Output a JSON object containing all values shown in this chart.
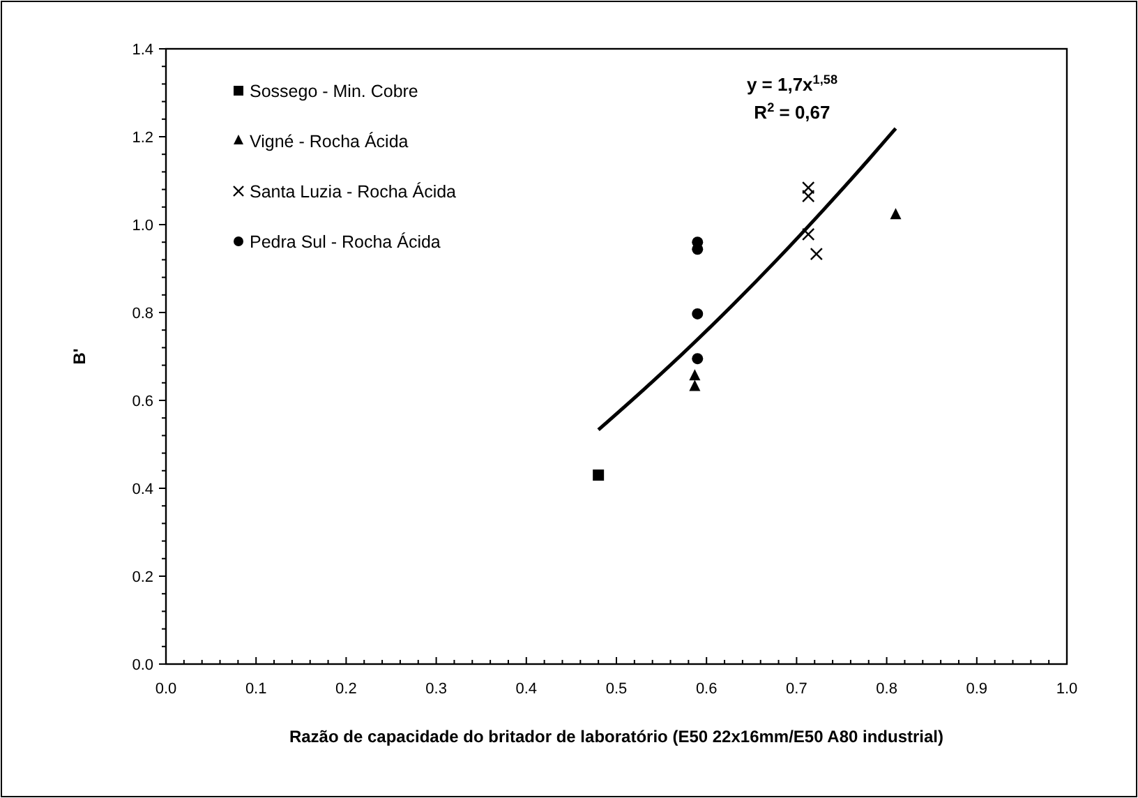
{
  "chart_data": {
    "type": "scatter",
    "xlabel": "Razão de capacidade do britador de laboratório (E50 22x16mm/E50 A80 industrial)",
    "ylabel": "B'",
    "xlim": [
      0,
      1
    ],
    "ylim": [
      0,
      1.4
    ],
    "xticks": [
      {
        "value": 0,
        "label": "0.0"
      },
      {
        "value": 0.02,
        "label": null
      },
      {
        "value": 0.04,
        "label": null
      },
      {
        "value": 0.06,
        "label": null
      },
      {
        "value": 0.08,
        "label": null
      },
      {
        "value": 0.1,
        "label": "0.1"
      },
      {
        "value": 0.12,
        "label": null
      },
      {
        "value": 0.14,
        "label": null
      },
      {
        "value": 0.16,
        "label": null
      },
      {
        "value": 0.18,
        "label": null
      },
      {
        "value": 0.2,
        "label": "0.2"
      },
      {
        "value": 0.22,
        "label": null
      },
      {
        "value": 0.24,
        "label": null
      },
      {
        "value": 0.26,
        "label": null
      },
      {
        "value": 0.28,
        "label": null
      },
      {
        "value": 0.3,
        "label": "0.3"
      },
      {
        "value": 0.32,
        "label": null
      },
      {
        "value": 0.34,
        "label": null
      },
      {
        "value": 0.36,
        "label": null
      },
      {
        "value": 0.38,
        "label": null
      },
      {
        "value": 0.4,
        "label": "0.4"
      },
      {
        "value": 0.42,
        "label": null
      },
      {
        "value": 0.44,
        "label": null
      },
      {
        "value": 0.46,
        "label": null
      },
      {
        "value": 0.48,
        "label": null
      },
      {
        "value": 0.5,
        "label": "0.5"
      },
      {
        "value": 0.52,
        "label": null
      },
      {
        "value": 0.54,
        "label": null
      },
      {
        "value": 0.56,
        "label": null
      },
      {
        "value": 0.58,
        "label": null
      },
      {
        "value": 0.6,
        "label": "0.6"
      },
      {
        "value": 0.62,
        "label": null
      },
      {
        "value": 0.64,
        "label": null
      },
      {
        "value": 0.66,
        "label": null
      },
      {
        "value": 0.68,
        "label": null
      },
      {
        "value": 0.7,
        "label": "0.7"
      },
      {
        "value": 0.72,
        "label": null
      },
      {
        "value": 0.74,
        "label": null
      },
      {
        "value": 0.76,
        "label": null
      },
      {
        "value": 0.78,
        "label": null
      },
      {
        "value": 0.8,
        "label": "0.8"
      },
      {
        "value": 0.82,
        "label": null
      },
      {
        "value": 0.84,
        "label": null
      },
      {
        "value": 0.86,
        "label": null
      },
      {
        "value": 0.88,
        "label": null
      },
      {
        "value": 0.9,
        "label": "0.9"
      },
      {
        "value": 0.92,
        "label": null
      },
      {
        "value": 0.94,
        "label": null
      },
      {
        "value": 0.96,
        "label": null
      },
      {
        "value": 0.98,
        "label": null
      },
      {
        "value": 1,
        "label": "1.0"
      }
    ],
    "yticks": [
      {
        "value": 0,
        "label": "0.0"
      },
      {
        "value": 0.04,
        "label": null
      },
      {
        "value": 0.08,
        "label": null
      },
      {
        "value": 0.12,
        "label": null
      },
      {
        "value": 0.16,
        "label": null
      },
      {
        "value": 0.2,
        "label": "0.2"
      },
      {
        "value": 0.24,
        "label": null
      },
      {
        "value": 0.28,
        "label": null
      },
      {
        "value": 0.32,
        "label": null
      },
      {
        "value": 0.36,
        "label": null
      },
      {
        "value": 0.4,
        "label": "0.4"
      },
      {
        "value": 0.44,
        "label": null
      },
      {
        "value": 0.48,
        "label": null
      },
      {
        "value": 0.52,
        "label": null
      },
      {
        "value": 0.56,
        "label": null
      },
      {
        "value": 0.6,
        "label": "0.6"
      },
      {
        "value": 0.64,
        "label": null
      },
      {
        "value": 0.68,
        "label": null
      },
      {
        "value": 0.72,
        "label": null
      },
      {
        "value": 0.76,
        "label": null
      },
      {
        "value": 0.8,
        "label": "0.8"
      },
      {
        "value": 0.84,
        "label": null
      },
      {
        "value": 0.88,
        "label": null
      },
      {
        "value": 0.92,
        "label": null
      },
      {
        "value": 0.96,
        "label": null
      },
      {
        "value": 1,
        "label": "1.0"
      },
      {
        "value": 1.04,
        "label": null
      },
      {
        "value": 1.08,
        "label": null
      },
      {
        "value": 1.12,
        "label": null
      },
      {
        "value": 1.16,
        "label": null
      },
      {
        "value": 1.2,
        "label": "1.2"
      },
      {
        "value": 1.24,
        "label": null
      },
      {
        "value": 1.28,
        "label": null
      },
      {
        "value": 1.32,
        "label": null
      },
      {
        "value": 1.36,
        "label": null
      },
      {
        "value": 1.4,
        "label": "1.4"
      }
    ],
    "grid": false,
    "legend": "top left",
    "annotations": [
      "y = 1,7x$^{1,58}$",
      "R$^{2}$ = 0,67"
    ],
    "series": [
      {
        "name": "Sossego - Min. Cobre",
        "color": "#000000",
        "marker": "square",
        "x": [
          0.48
        ],
        "values": [
          0.43
        ]
      },
      {
        "name": "Vigné - Rocha Ácida",
        "color": "#000000",
        "marker": "triangle",
        "x": [
          0.587,
          0.587,
          0.81
        ],
        "values": [
          0.655,
          0.631,
          1.022
        ]
      },
      {
        "name": "Santa Luzia - Rocha Ácida",
        "color": "#000000",
        "marker": "cross",
        "x": [
          0.713,
          0.713,
          0.713,
          0.722
        ],
        "values": [
          1.084,
          1.065,
          0.978,
          0.933
        ]
      },
      {
        "name": "Pedra Sul - Rocha Ácida",
        "color": "#000000",
        "marker": "circle",
        "x": [
          0.59,
          0.59,
          0.59,
          0.59
        ],
        "values": [
          0.96,
          0.944,
          0.797,
          0.695
        ]
      },
      {
        "type": "line",
        "color": "#000000",
        "marker": "none",
        "line_style": "solid",
        "x": [
          0.48,
          0.53,
          0.58,
          0.63,
          0.68,
          0.73,
          0.78,
          0.81
        ],
        "values": [
          0.533,
          0.624,
          0.719,
          0.819,
          0.924,
          1.034,
          1.148,
          1.219
        ]
      }
    ]
  }
}
